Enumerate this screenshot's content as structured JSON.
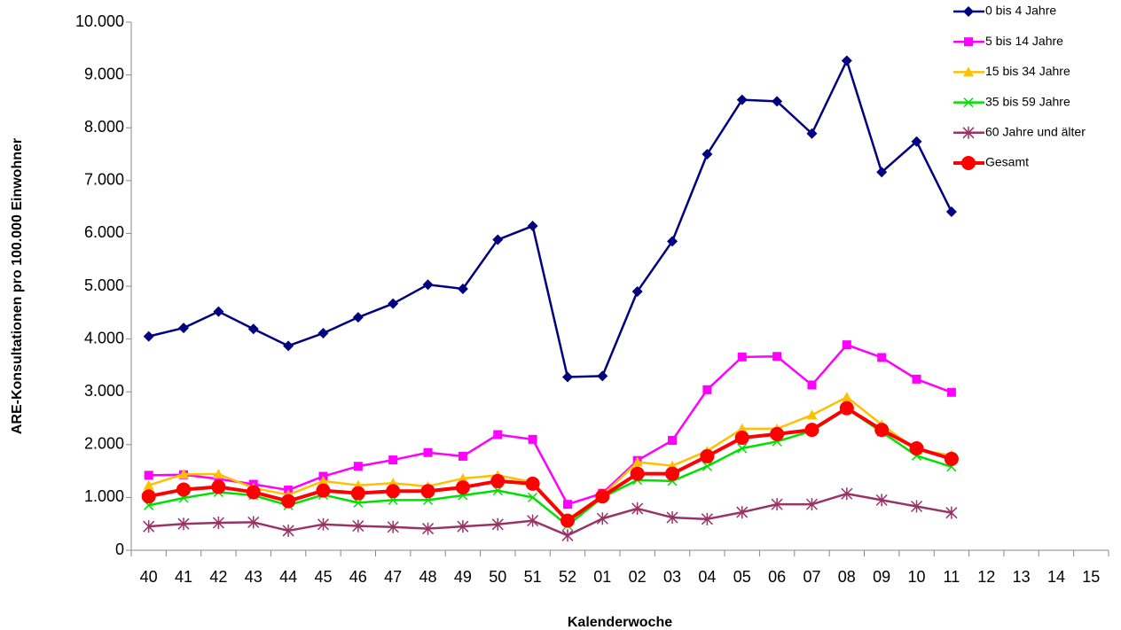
{
  "chart_data": {
    "type": "line",
    "y_label": "ARE-Konsultationen pro 100.000 Einwohner",
    "x_label": "Kalenderwoche",
    "categories": [
      "40",
      "41",
      "42",
      "43",
      "44",
      "45",
      "46",
      "47",
      "48",
      "49",
      "50",
      "51",
      "52",
      "01",
      "02",
      "03",
      "04",
      "05",
      "06",
      "07",
      "08",
      "09",
      "10",
      "11",
      "12",
      "13",
      "14",
      "15"
    ],
    "ylim": [
      0,
      10000
    ],
    "yticks": [
      0,
      {
        "value": 1000,
        "label": "1.000"
      },
      {
        "value": 2000,
        "label": "2.000"
      },
      {
        "value": 3000,
        "label": "3.000"
      },
      {
        "value": 4000,
        "label": "4.000"
      },
      {
        "value": 5000,
        "label": "5.000"
      },
      {
        "value": 6000,
        "label": "6.000"
      },
      {
        "value": 7000,
        "label": "7.000"
      },
      {
        "value": 8000,
        "label": "8.000"
      },
      {
        "value": 9000,
        "label": "9.000"
      },
      {
        "value": 10000,
        "label": "10.000"
      }
    ],
    "grid": false,
    "legend": "top-right",
    "series": [
      {
        "name": "0 bis 4 Jahre",
        "color": "#000080",
        "marker": "diamond",
        "values": [
          4050,
          4210,
          4520,
          4190,
          3870,
          4110,
          4410,
          4670,
          5030,
          4950,
          5880,
          6140,
          3280,
          3300,
          4900,
          5850,
          7500,
          8530,
          8500,
          7890,
          9270,
          7160,
          7740,
          6410,
          null,
          null,
          null,
          null
        ]
      },
      {
        "name": "5 bis 14 Jahre",
        "color": "#ff00ff",
        "marker": "square",
        "values": [
          1420,
          1430,
          1350,
          1250,
          1140,
          1400,
          1590,
          1710,
          1850,
          1780,
          2190,
          2100,
          870,
          1080,
          1700,
          2080,
          3040,
          3660,
          3670,
          3130,
          3890,
          3650,
          3240,
          2990,
          null,
          null,
          null,
          null
        ]
      },
      {
        "name": "15 bis 34 Jahre",
        "color": "#ffc000",
        "marker": "triangle",
        "values": [
          1230,
          1440,
          1440,
          1180,
          1050,
          1310,
          1230,
          1270,
          1210,
          1360,
          1420,
          1290,
          580,
          1040,
          1670,
          1600,
          1880,
          2300,
          2300,
          2560,
          2900,
          2380,
          1900,
          1800,
          null,
          null,
          null,
          null
        ]
      },
      {
        "name": "35 bis 59 Jahre",
        "color": "#00e000",
        "marker": "x",
        "values": [
          850,
          990,
          1100,
          1040,
          850,
          1050,
          900,
          950,
          950,
          1040,
          1130,
          1000,
          470,
          1000,
          1330,
          1310,
          1590,
          1930,
          2060,
          2260,
          2680,
          2240,
          1790,
          1580,
          null,
          null,
          null,
          null
        ]
      },
      {
        "name": "60 Jahre und älter",
        "color": "#993366",
        "marker": "star",
        "values": [
          450,
          500,
          520,
          530,
          370,
          490,
          460,
          440,
          410,
          450,
          490,
          560,
          280,
          600,
          790,
          620,
          590,
          720,
          870,
          870,
          1070,
          950,
          830,
          710,
          null,
          null,
          null,
          null
        ]
      },
      {
        "name": "Gesamt",
        "color": "#ff0000",
        "marker": "circle",
        "values": [
          1020,
          1150,
          1200,
          1100,
          930,
          1130,
          1080,
          1120,
          1120,
          1190,
          1310,
          1260,
          560,
          1020,
          1450,
          1450,
          1780,
          2130,
          2200,
          2280,
          2690,
          2280,
          1930,
          1730,
          null,
          null,
          null,
          null
        ]
      }
    ]
  }
}
